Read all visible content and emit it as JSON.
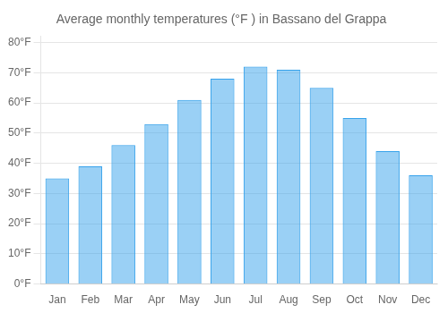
{
  "chart_data": {
    "type": "bar",
    "title": "Average monthly temperatures (°F ) in Bassano del Grappa",
    "categories": [
      "Jan",
      "Feb",
      "Mar",
      "Apr",
      "May",
      "Jun",
      "Jul",
      "Aug",
      "Sep",
      "Oct",
      "Nov",
      "Dec"
    ],
    "values": [
      35,
      39,
      46,
      53,
      61,
      68,
      72,
      71,
      65,
      55,
      44,
      36
    ],
    "ylim": [
      0,
      82
    ],
    "yticks": [
      {
        "value": 0,
        "label": "0°F"
      },
      {
        "value": 10,
        "label": "10°F"
      },
      {
        "value": 20,
        "label": "20°F"
      },
      {
        "value": 30,
        "label": "30°F"
      },
      {
        "value": 40,
        "label": "40°F"
      },
      {
        "value": 50,
        "label": "50°F"
      },
      {
        "value": 60,
        "label": "60°F"
      },
      {
        "value": 70,
        "label": "70°F"
      },
      {
        "value": 80,
        "label": "80°F"
      }
    ],
    "grid": true
  }
}
